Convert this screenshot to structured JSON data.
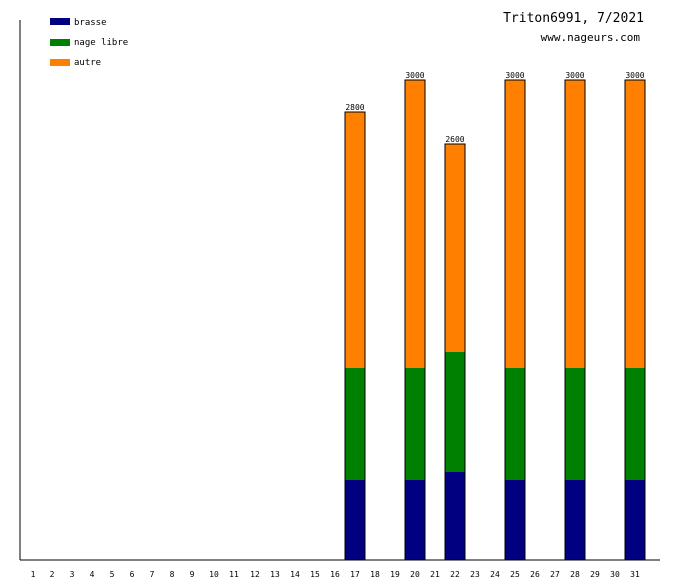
{
  "colors": {
    "brasse": "#000080",
    "nage_libre": "#008000",
    "autre": "#ff8000",
    "axis": "#000000"
  },
  "chart_data": {
    "type": "bar",
    "stacked": true,
    "title": "Triton6991, 7/2021",
    "subtitle": "www.nageurs.com",
    "xlabel": "",
    "ylabel": "",
    "ylim": [
      0,
      3000
    ],
    "legend_position": "top-left",
    "grid": false,
    "categories": [
      "1",
      "2",
      "3",
      "4",
      "5",
      "6",
      "7",
      "8",
      "9",
      "10",
      "11",
      "12",
      "13",
      "14",
      "15",
      "16",
      "17",
      "18",
      "19",
      "20",
      "21",
      "22",
      "23",
      "24",
      "25",
      "26",
      "27",
      "28",
      "29",
      "30",
      "31"
    ],
    "series": [
      {
        "name": "brasse",
        "color": "#000080",
        "values": [
          0,
          0,
          0,
          0,
          0,
          0,
          0,
          0,
          0,
          0,
          0,
          0,
          0,
          0,
          0,
          0,
          500,
          0,
          0,
          500,
          0,
          550,
          0,
          0,
          500,
          0,
          0,
          500,
          0,
          0,
          500
        ]
      },
      {
        "name": "nage libre",
        "color": "#008000",
        "values": [
          0,
          0,
          0,
          0,
          0,
          0,
          0,
          0,
          0,
          0,
          0,
          0,
          0,
          0,
          0,
          0,
          700,
          0,
          0,
          700,
          0,
          750,
          0,
          0,
          700,
          0,
          0,
          700,
          0,
          0,
          700
        ]
      },
      {
        "name": "autre",
        "color": "#ff8000",
        "values": [
          0,
          0,
          0,
          0,
          0,
          0,
          0,
          0,
          0,
          0,
          0,
          0,
          0,
          0,
          0,
          0,
          1600,
          0,
          0,
          1800,
          0,
          1300,
          0,
          0,
          1800,
          0,
          0,
          1800,
          0,
          0,
          1800
        ]
      }
    ],
    "totals": [
      null,
      null,
      null,
      null,
      null,
      null,
      null,
      null,
      null,
      null,
      null,
      null,
      null,
      null,
      null,
      null,
      "2800",
      null,
      null,
      "3000",
      null,
      "2600",
      null,
      null,
      "3000",
      null,
      null,
      "3000",
      null,
      null,
      "3000"
    ]
  }
}
